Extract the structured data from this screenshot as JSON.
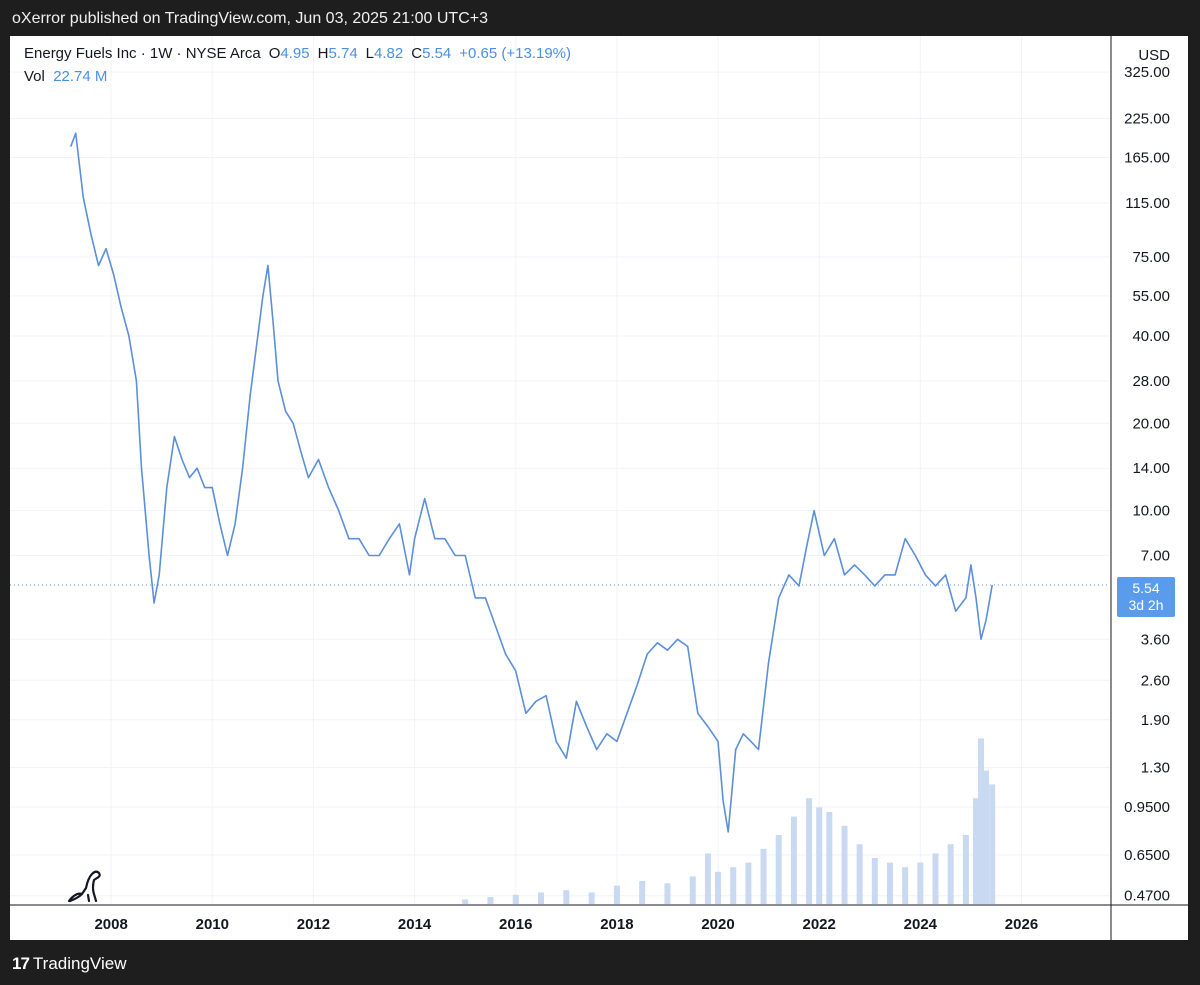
{
  "published_by": "oXerror published on TradingView.com, Jun 03, 2025 21:00 UTC+3",
  "footer_brand": "TradingView",
  "footer_mark": "17",
  "colors": {
    "price_line": "#5b8fd8",
    "price_line_dark": "#7d8799",
    "volume_bar": "#c9d9f2",
    "grid": "#f0f3fa",
    "current_price_line": "#5b9bec",
    "price_tag_bg": "#5b9bec"
  },
  "header": {
    "symbol": "Energy Fuels Inc · 1W · NYSE Arca",
    "open_label": "O",
    "open": "4.95",
    "high_label": "H",
    "high": "5.74",
    "low_label": "L",
    "low": "4.82",
    "close_label": "C",
    "close": "5.54",
    "change": "+0.65 (+13.19%)",
    "vol_label": "Vol",
    "vol_value": "22.74 M"
  },
  "axis": {
    "currency": "USD",
    "current_price": "5.54",
    "countdown": "3d 2h"
  },
  "chart_data": {
    "type": "line",
    "scale": "log",
    "y_ticks": [
      "325.00",
      "225.00",
      "165.00",
      "115.00",
      "75.00",
      "55.00",
      "40.00",
      "28.00",
      "20.00",
      "14.00",
      "10.00",
      "7.00",
      "3.60",
      "2.60",
      "1.90",
      "1.30",
      "0.9500",
      "0.6500",
      "0.4700"
    ],
    "x_ticks": [
      "2008",
      "2010",
      "2012",
      "2014",
      "2016",
      "2018",
      "2020",
      "2022",
      "2024",
      "2026"
    ],
    "xlim": [
      2006.0,
      2027.75
    ],
    "ylim": [
      0.44,
      400
    ],
    "grid": true,
    "series": [
      {
        "x": [
          2007.2,
          2007.3,
          2007.45,
          2007.6,
          2007.75,
          2007.9,
          2008.05,
          2008.2,
          2008.35,
          2008.5,
          2008.6,
          2008.75,
          2008.85,
          2008.95,
          2009.1,
          2009.25,
          2009.4,
          2009.55,
          2009.7,
          2009.85,
          2010.0,
          2010.15,
          2010.3,
          2010.45,
          2010.6,
          2010.75,
          2010.9,
          2011.0,
          2011.1,
          2011.2,
          2011.3,
          2011.45,
          2011.6,
          2011.75,
          2011.9,
          2012.1,
          2012.3,
          2012.5,
          2012.7,
          2012.9,
          2013.1,
          2013.3,
          2013.5,
          2013.7,
          2013.9,
          2014.0,
          2014.2,
          2014.4,
          2014.6,
          2014.8,
          2015.0,
          2015.2,
          2015.4,
          2015.6,
          2015.8,
          2016.0,
          2016.2,
          2016.4,
          2016.6,
          2016.8,
          2017.0,
          2017.2,
          2017.4,
          2017.6,
          2017.8,
          2018.0,
          2018.2,
          2018.4,
          2018.6,
          2018.8,
          2019.0,
          2019.2,
          2019.4,
          2019.6,
          2019.8,
          2020.0,
          2020.1,
          2020.2,
          2020.35,
          2020.5,
          2020.65,
          2020.8,
          2021.0,
          2021.2,
          2021.4,
          2021.6,
          2021.75,
          2021.9,
          2022.1,
          2022.3,
          2022.5,
          2022.7,
          2022.9,
          2023.1,
          2023.3,
          2023.5,
          2023.7,
          2023.9,
          2024.1,
          2024.3,
          2024.5,
          2024.7,
          2024.9,
          2025.0,
          2025.1,
          2025.2,
          2025.3,
          2025.42
        ],
        "y": [
          180,
          200,
          120,
          90,
          70,
          80,
          65,
          50,
          40,
          28,
          14,
          7,
          4.8,
          6,
          12,
          18,
          15,
          13,
          14,
          12,
          12,
          9,
          7,
          9,
          14,
          25,
          40,
          55,
          70,
          45,
          28,
          22,
          20,
          16,
          13,
          15,
          12,
          10,
          8,
          8,
          7,
          7,
          8,
          9,
          6,
          8,
          11,
          8,
          8,
          7,
          7,
          5,
          5,
          4,
          3.2,
          2.8,
          2.0,
          2.2,
          2.3,
          1.6,
          1.4,
          2.2,
          1.8,
          1.5,
          1.7,
          1.6,
          2.0,
          2.5,
          3.2,
          3.5,
          3.3,
          3.6,
          3.4,
          2.0,
          1.8,
          1.6,
          1.0,
          0.78,
          1.5,
          1.7,
          1.6,
          1.5,
          3.0,
          5.0,
          6.0,
          5.5,
          7.5,
          10.0,
          7.0,
          8.0,
          6.0,
          6.5,
          6.0,
          5.5,
          6.0,
          6.0,
          8.0,
          7.0,
          6.0,
          5.5,
          6.0,
          4.5,
          5.0,
          6.5,
          5.0,
          3.6,
          4.2,
          5.54
        ]
      }
    ],
    "volume": {
      "x": [
        2015.0,
        2015.5,
        2016.0,
        2016.5,
        2017.0,
        2017.5,
        2018.0,
        2018.5,
        2019.0,
        2019.5,
        2019.8,
        2020.0,
        2020.3,
        2020.6,
        2020.9,
        2021.2,
        2021.5,
        2021.8,
        2022.0,
        2022.2,
        2022.5,
        2022.8,
        2023.1,
        2023.4,
        2023.7,
        2024.0,
        2024.3,
        2024.6,
        2024.9,
        2025.1,
        2025.2,
        2025.3,
        2025.42
      ],
      "v": [
        2,
        3,
        4,
        5,
        6,
        5,
        8,
        10,
        9,
        12,
        22,
        14,
        16,
        18,
        24,
        30,
        38,
        46,
        42,
        40,
        34,
        26,
        20,
        18,
        16,
        18,
        22,
        26,
        30,
        46,
        72,
        58,
        52
      ]
    }
  }
}
